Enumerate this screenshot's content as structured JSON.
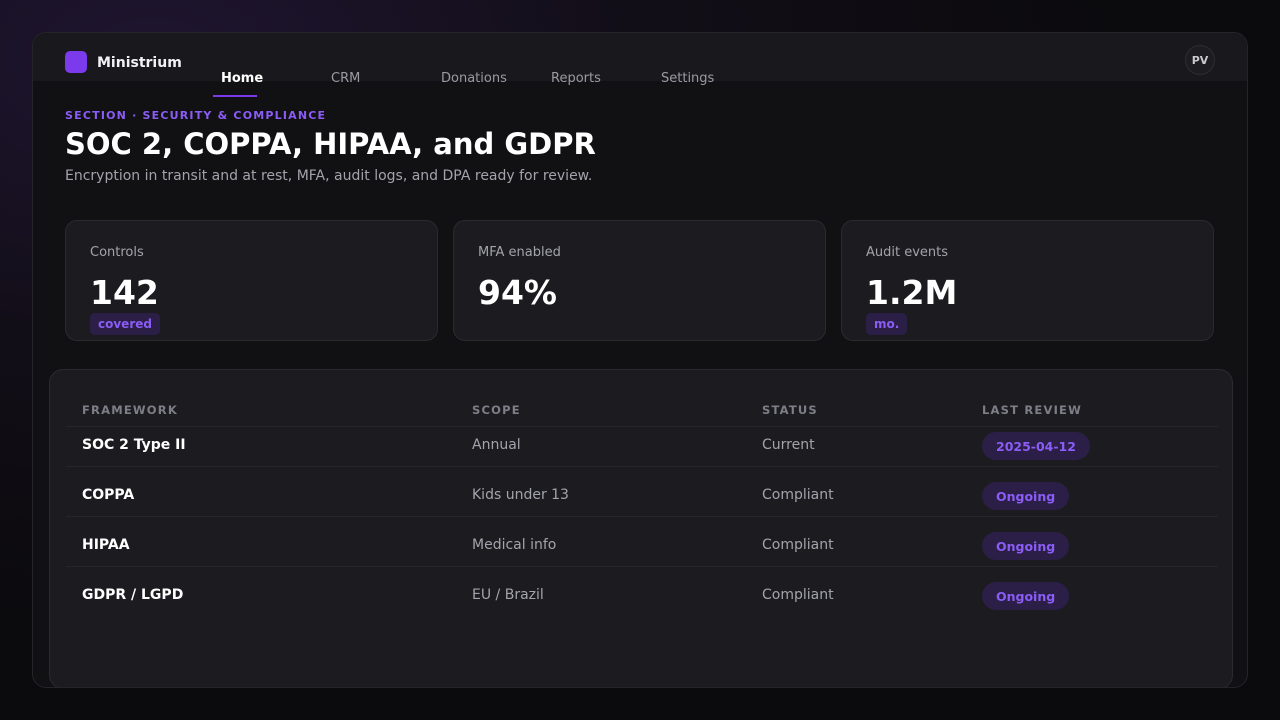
{
  "app": {
    "brand": "Ministrium",
    "avatar_initials": "PV",
    "accent": "#7c3aed"
  },
  "nav": {
    "items": [
      {
        "label": "Home",
        "active": true
      },
      {
        "label": "CRM",
        "active": false
      },
      {
        "label": "Donations",
        "active": false
      },
      {
        "label": "Reports",
        "active": false
      },
      {
        "label": "Settings",
        "active": false
      }
    ]
  },
  "section": {
    "eyebrow": "SECTION · SECURITY & COMPLIANCE",
    "title": "SOC 2, COPPA, HIPAA, and GDPR",
    "subtitle": "Encryption in transit and at rest, MFA, audit logs, and DPA ready for review."
  },
  "stats": [
    {
      "label": "Controls",
      "value": "142",
      "pill": "covered"
    },
    {
      "label": "MFA enabled",
      "value": "94%",
      "pill": ""
    },
    {
      "label": "Audit events",
      "value": "1.2M",
      "pill": "mo."
    }
  ],
  "table": {
    "headers": [
      "FRAMEWORK",
      "SCOPE",
      "STATUS",
      "LAST REVIEW"
    ],
    "rows": [
      {
        "framework": "SOC 2 Type II",
        "scope": "Annual",
        "status": "Current",
        "last_review": "2025-04-12"
      },
      {
        "framework": "COPPA",
        "scope": "Kids under 13",
        "status": "Compliant",
        "last_review": "Ongoing"
      },
      {
        "framework": "HIPAA",
        "scope": "Medical info",
        "status": "Compliant",
        "last_review": "Ongoing"
      },
      {
        "framework": "GDPR / LGPD",
        "scope": "EU / Brazil",
        "status": "Compliant",
        "last_review": "Ongoing"
      }
    ]
  }
}
